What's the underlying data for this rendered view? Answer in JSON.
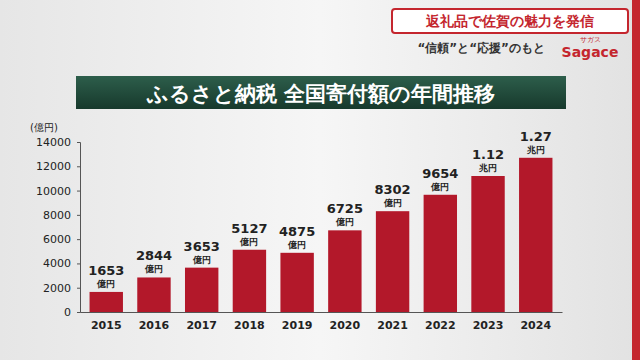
{
  "header": {
    "headline": "返礼品で佐賀の魅力を発信",
    "subline": "“信頼”と“応援”のもと",
    "logo_ruby": "サガス",
    "logo": "Sagace"
  },
  "chart_data": {
    "type": "bar",
    "title": "ふるさと納税 全国寄付額の年間推移",
    "y_label": "(億円)",
    "categories": [
      "2015",
      "2016",
      "2017",
      "2018",
      "2019",
      "2020",
      "2021",
      "2022",
      "2023",
      "2024"
    ],
    "values": [
      1653,
      2844,
      3653,
      5127,
      4875,
      6725,
      8302,
      9654,
      11200,
      12700
    ],
    "value_labels": [
      "1653億円",
      "2844億円",
      "3653億円",
      "5127億円",
      "4875億円",
      "6725億円",
      "8302億円",
      "9654億円",
      "1.12兆円",
      "1.27兆円"
    ],
    "color": "#b3182a",
    "ylim": [
      0,
      14000
    ],
    "yticks": [
      0,
      2000,
      4000,
      6000,
      8000,
      10000,
      12000,
      14000
    ],
    "grid": false,
    "data_labels": true
  }
}
